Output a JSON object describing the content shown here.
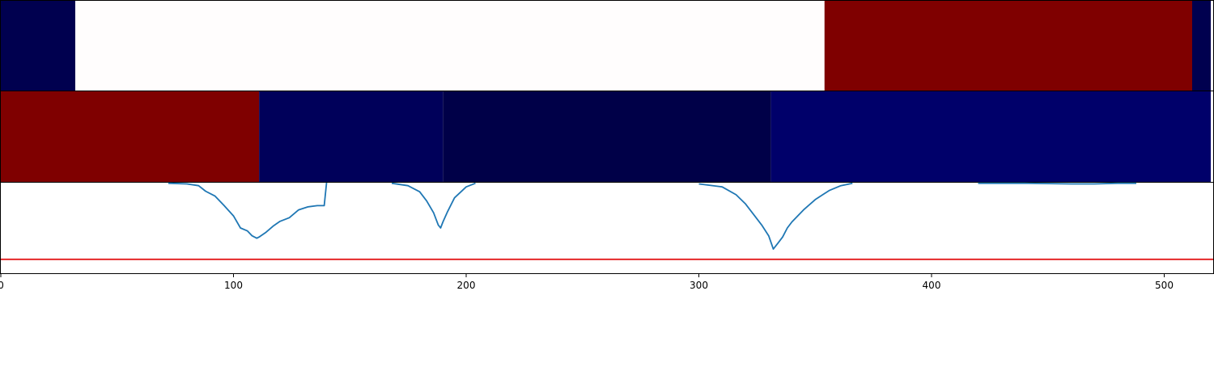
{
  "chart_data": {
    "type": "heatmap",
    "xlim": [
      0,
      520
    ],
    "x_ticks": [
      "0",
      "100",
      "200",
      "300",
      "400",
      "500"
    ],
    "x_tick_values": [
      0,
      100,
      200,
      300,
      400,
      500
    ],
    "colors": {
      "dark_navy": "#00004f",
      "darker_navy": "#000048",
      "navy": "#00006a",
      "white": "#fffdfd",
      "dark_red": "#7f0000",
      "line": "#1f77b4",
      "threshold": "#e31a1c"
    },
    "bands": [
      {
        "segments": [
          {
            "start": 0,
            "end": 32,
            "color": "#00004f"
          },
          {
            "start": 32,
            "end": 354,
            "color": "#fffdfd"
          },
          {
            "start": 354,
            "end": 512,
            "color": "#7f0000"
          },
          {
            "start": 512,
            "end": 520,
            "color": "#00004f"
          }
        ]
      },
      {
        "segments": [
          {
            "start": 0,
            "end": 111,
            "color": "#7f0000"
          },
          {
            "start": 111,
            "end": 190,
            "color": "#00005a"
          },
          {
            "start": 190,
            "end": 331,
            "color": "#000048"
          },
          {
            "start": 331,
            "end": 520,
            "color": "#00006a"
          }
        ]
      }
    ],
    "line_series": {
      "ylim": [
        -0.5,
        1.0
      ],
      "threshold": -0.27,
      "x": [
        72,
        80,
        85,
        88,
        92,
        96,
        100,
        103,
        106,
        108,
        110,
        111,
        114,
        117,
        120,
        124,
        128,
        132,
        136,
        139,
        140,
        168,
        175,
        180,
        183,
        186,
        188,
        189,
        190,
        192,
        195,
        200,
        204,
        263,
        300,
        310,
        316,
        320,
        324,
        327,
        330,
        332,
        334,
        336,
        338,
        340,
        345,
        350,
        356,
        361,
        366,
        420,
        440,
        460,
        470,
        480,
        488
      ],
      "y": [
        0.99,
        0.98,
        0.95,
        0.86,
        0.78,
        0.62,
        0.45,
        0.25,
        0.2,
        0.12,
        0.08,
        0.1,
        0.18,
        0.28,
        0.36,
        0.42,
        0.55,
        0.6,
        0.62,
        0.62,
        1.0,
        0.99,
        0.95,
        0.85,
        0.7,
        0.5,
        0.3,
        0.25,
        0.35,
        0.52,
        0.75,
        0.93,
        0.99,
        0.99,
        0.98,
        0.93,
        0.8,
        0.65,
        0.45,
        0.3,
        0.12,
        -0.1,
        0.0,
        0.1,
        0.25,
        0.35,
        0.55,
        0.72,
        0.87,
        0.95,
        0.99,
        0.99,
        0.99,
        0.98,
        0.98,
        0.99,
        0.99
      ]
    }
  }
}
